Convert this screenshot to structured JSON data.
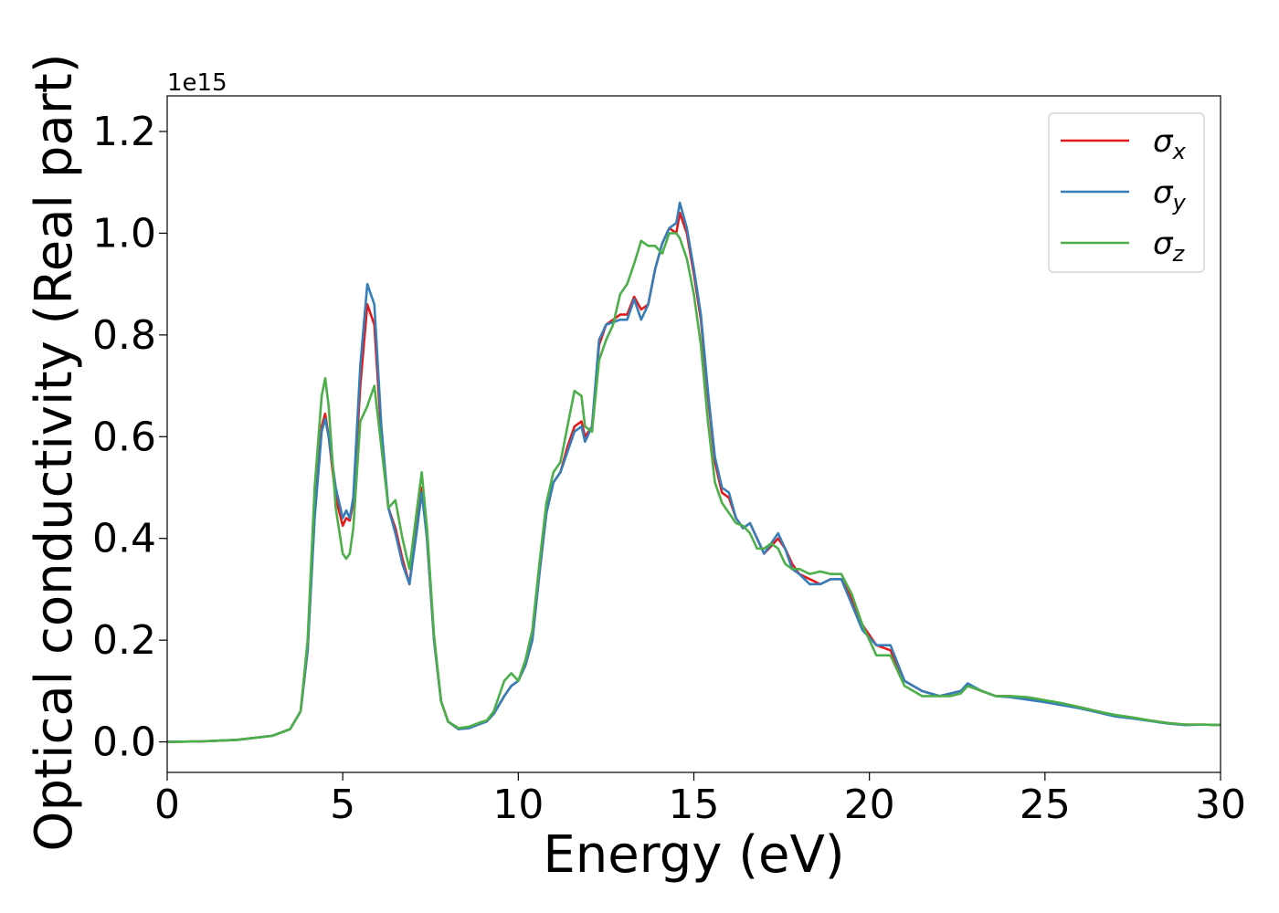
{
  "chart_data": {
    "type": "line",
    "xlabel": "Energy (eV)",
    "ylabel": "Optical conductivity (Real part)",
    "y_offset_label": "1e15",
    "xlim": [
      0,
      30
    ],
    "ylim": [
      -0.06,
      1.27
    ],
    "x_ticks": [
      0,
      5,
      10,
      15,
      20,
      25,
      30
    ],
    "x_tick_labels": [
      "0",
      "5",
      "10",
      "15",
      "20",
      "25",
      "30"
    ],
    "y_ticks": [
      0.0,
      0.2,
      0.4,
      0.6,
      0.8,
      1.0,
      1.2
    ],
    "y_tick_labels": [
      "0.0",
      "0.2",
      "0.4",
      "0.6",
      "0.8",
      "1.0",
      "1.2"
    ],
    "grid": false,
    "legend_position": "top-right",
    "series": [
      {
        "name": "σ_x",
        "legend_symbol": "σ",
        "legend_subscript": "x",
        "color": "#e41a1c",
        "x": [
          0,
          1,
          2,
          3,
          3.5,
          3.8,
          4.0,
          4.2,
          4.4,
          4.5,
          4.6,
          4.8,
          5.0,
          5.1,
          5.2,
          5.3,
          5.5,
          5.7,
          5.9,
          6.1,
          6.3,
          6.5,
          6.7,
          6.9,
          7.1,
          7.25,
          7.4,
          7.6,
          7.8,
          8.0,
          8.3,
          8.6,
          8.9,
          9.1,
          9.3,
          9.6,
          9.8,
          10.0,
          10.2,
          10.4,
          10.6,
          10.8,
          11.0,
          11.2,
          11.4,
          11.6,
          11.8,
          11.9,
          12.1,
          12.3,
          12.5,
          12.7,
          12.9,
          13.1,
          13.3,
          13.5,
          13.7,
          13.9,
          14.1,
          14.3,
          14.5,
          14.6,
          14.8,
          15.0,
          15.2,
          15.4,
          15.6,
          15.8,
          16.0,
          16.2,
          16.4,
          16.6,
          16.8,
          17.0,
          17.2,
          17.4,
          17.6,
          17.8,
          18.0,
          18.3,
          18.6,
          18.9,
          19.2,
          19.5,
          19.8,
          20.2,
          20.6,
          21.0,
          21.5,
          22.0,
          22.3,
          22.6,
          22.8,
          23.2,
          23.6,
          24.0,
          24.5,
          25.0,
          25.5,
          26.0,
          26.5,
          27.0,
          27.5,
          28.0,
          28.5,
          29.0,
          29.5,
          30.0
        ],
        "y": [
          0.0,
          0.001,
          0.004,
          0.012,
          0.025,
          0.06,
          0.18,
          0.45,
          0.62,
          0.645,
          0.6,
          0.48,
          0.425,
          0.44,
          0.435,
          0.47,
          0.7,
          0.86,
          0.82,
          0.6,
          0.46,
          0.42,
          0.36,
          0.31,
          0.42,
          0.5,
          0.4,
          0.2,
          0.08,
          0.04,
          0.025,
          0.028,
          0.035,
          0.04,
          0.055,
          0.09,
          0.11,
          0.12,
          0.15,
          0.2,
          0.33,
          0.45,
          0.51,
          0.53,
          0.58,
          0.62,
          0.63,
          0.6,
          0.62,
          0.78,
          0.82,
          0.83,
          0.84,
          0.84,
          0.875,
          0.85,
          0.86,
          0.93,
          0.98,
          1.01,
          1.0,
          1.04,
          1.0,
          0.92,
          0.83,
          0.68,
          0.55,
          0.49,
          0.48,
          0.44,
          0.42,
          0.43,
          0.4,
          0.37,
          0.385,
          0.4,
          0.38,
          0.35,
          0.33,
          0.32,
          0.31,
          0.32,
          0.32,
          0.28,
          0.23,
          0.19,
          0.18,
          0.12,
          0.1,
          0.09,
          0.095,
          0.1,
          0.11,
          0.1,
          0.09,
          0.09,
          0.085,
          0.08,
          0.075,
          0.068,
          0.06,
          0.052,
          0.047,
          0.042,
          0.037,
          0.034,
          0.034,
          0.033
        ]
      },
      {
        "name": "σ_y",
        "legend_symbol": "σ",
        "legend_subscript": "y",
        "color": "#377eb8",
        "x": [
          0,
          1,
          2,
          3,
          3.5,
          3.8,
          4.0,
          4.2,
          4.4,
          4.5,
          4.6,
          4.8,
          5.0,
          5.1,
          5.2,
          5.3,
          5.5,
          5.7,
          5.9,
          6.1,
          6.3,
          6.5,
          6.7,
          6.9,
          7.1,
          7.25,
          7.4,
          7.6,
          7.8,
          8.0,
          8.3,
          8.6,
          8.9,
          9.1,
          9.3,
          9.6,
          9.8,
          10.0,
          10.2,
          10.4,
          10.6,
          10.8,
          11.0,
          11.2,
          11.4,
          11.6,
          11.8,
          11.9,
          12.1,
          12.3,
          12.5,
          12.7,
          12.9,
          13.1,
          13.3,
          13.5,
          13.7,
          13.9,
          14.1,
          14.3,
          14.5,
          14.6,
          14.8,
          15.0,
          15.2,
          15.4,
          15.6,
          15.8,
          16.0,
          16.2,
          16.4,
          16.6,
          16.8,
          17.0,
          17.2,
          17.4,
          17.6,
          17.8,
          18.0,
          18.3,
          18.6,
          18.9,
          19.2,
          19.5,
          19.8,
          20.2,
          20.6,
          21.0,
          21.5,
          22.0,
          22.3,
          22.6,
          22.8,
          23.2,
          23.6,
          24.0,
          24.5,
          25.0,
          25.5,
          26.0,
          26.5,
          27.0,
          27.5,
          28.0,
          28.5,
          29.0,
          29.5,
          30.0
        ],
        "y": [
          0.0,
          0.001,
          0.004,
          0.012,
          0.025,
          0.06,
          0.18,
          0.44,
          0.61,
          0.635,
          0.6,
          0.5,
          0.44,
          0.455,
          0.44,
          0.48,
          0.74,
          0.9,
          0.86,
          0.62,
          0.46,
          0.41,
          0.35,
          0.31,
          0.41,
          0.49,
          0.4,
          0.2,
          0.08,
          0.04,
          0.025,
          0.027,
          0.035,
          0.04,
          0.055,
          0.09,
          0.11,
          0.12,
          0.15,
          0.2,
          0.33,
          0.45,
          0.51,
          0.53,
          0.57,
          0.61,
          0.62,
          0.59,
          0.62,
          0.79,
          0.82,
          0.825,
          0.83,
          0.83,
          0.87,
          0.83,
          0.86,
          0.93,
          0.98,
          1.01,
          1.02,
          1.06,
          1.01,
          0.93,
          0.84,
          0.69,
          0.56,
          0.5,
          0.49,
          0.44,
          0.42,
          0.43,
          0.4,
          0.37,
          0.39,
          0.41,
          0.38,
          0.34,
          0.33,
          0.31,
          0.31,
          0.32,
          0.32,
          0.27,
          0.22,
          0.19,
          0.19,
          0.12,
          0.1,
          0.09,
          0.095,
          0.1,
          0.115,
          0.1,
          0.09,
          0.088,
          0.083,
          0.078,
          0.072,
          0.066,
          0.058,
          0.05,
          0.046,
          0.041,
          0.036,
          0.033,
          0.034,
          0.033
        ]
      },
      {
        "name": "σ_z",
        "legend_symbol": "σ",
        "legend_subscript": "z",
        "color": "#4daf4a",
        "x": [
          0,
          1,
          2,
          3,
          3.5,
          3.8,
          4.0,
          4.2,
          4.4,
          4.5,
          4.6,
          4.8,
          5.0,
          5.1,
          5.2,
          5.3,
          5.5,
          5.7,
          5.9,
          6.1,
          6.3,
          6.5,
          6.7,
          6.9,
          7.1,
          7.25,
          7.4,
          7.6,
          7.8,
          8.0,
          8.3,
          8.6,
          8.9,
          9.1,
          9.3,
          9.6,
          9.8,
          10.0,
          10.2,
          10.4,
          10.6,
          10.8,
          11.0,
          11.2,
          11.4,
          11.6,
          11.8,
          11.9,
          12.1,
          12.3,
          12.5,
          12.7,
          12.9,
          13.1,
          13.3,
          13.5,
          13.7,
          13.9,
          14.1,
          14.3,
          14.5,
          14.6,
          14.8,
          15.0,
          15.2,
          15.4,
          15.6,
          15.8,
          16.0,
          16.2,
          16.4,
          16.6,
          16.8,
          17.0,
          17.2,
          17.4,
          17.6,
          17.8,
          18.0,
          18.3,
          18.6,
          18.9,
          19.2,
          19.5,
          19.8,
          20.2,
          20.6,
          21.0,
          21.5,
          22.0,
          22.3,
          22.6,
          22.8,
          23.2,
          23.6,
          24.0,
          24.5,
          25.0,
          25.5,
          26.0,
          26.5,
          27.0,
          27.5,
          28.0,
          28.5,
          29.0,
          29.5,
          30.0
        ],
        "y": [
          0.0,
          0.001,
          0.004,
          0.012,
          0.025,
          0.06,
          0.2,
          0.5,
          0.68,
          0.715,
          0.66,
          0.46,
          0.37,
          0.36,
          0.37,
          0.42,
          0.63,
          0.66,
          0.7,
          0.58,
          0.46,
          0.475,
          0.4,
          0.34,
          0.45,
          0.53,
          0.42,
          0.21,
          0.08,
          0.04,
          0.027,
          0.03,
          0.038,
          0.042,
          0.06,
          0.12,
          0.135,
          0.12,
          0.16,
          0.22,
          0.35,
          0.47,
          0.53,
          0.55,
          0.62,
          0.69,
          0.68,
          0.62,
          0.61,
          0.75,
          0.79,
          0.82,
          0.88,
          0.9,
          0.94,
          0.985,
          0.975,
          0.975,
          0.96,
          1.0,
          1.0,
          0.99,
          0.95,
          0.88,
          0.78,
          0.63,
          0.51,
          0.47,
          0.45,
          0.43,
          0.425,
          0.41,
          0.38,
          0.38,
          0.39,
          0.38,
          0.35,
          0.34,
          0.34,
          0.33,
          0.335,
          0.33,
          0.33,
          0.29,
          0.23,
          0.17,
          0.17,
          0.11,
          0.09,
          0.09,
          0.09,
          0.095,
          0.11,
          0.1,
          0.09,
          0.09,
          0.088,
          0.082,
          0.076,
          0.068,
          0.06,
          0.053,
          0.048,
          0.042,
          0.037,
          0.034,
          0.034,
          0.033
        ]
      }
    ]
  }
}
